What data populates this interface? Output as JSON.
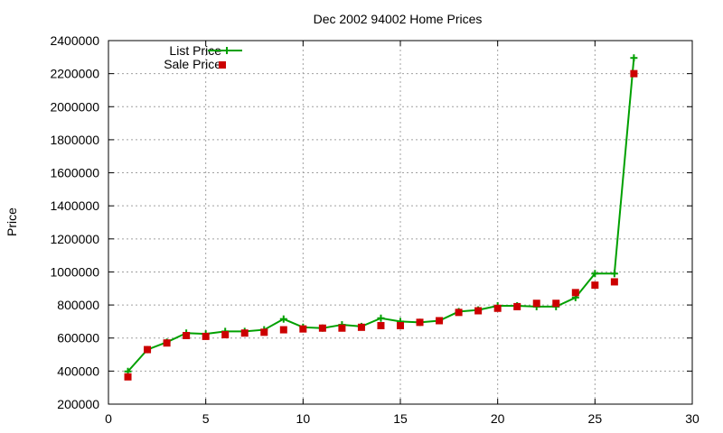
{
  "chart_data": {
    "type": "line",
    "title": "Dec 2002 94002 Home Prices",
    "xlabel": "",
    "ylabel": "Price",
    "xlim": [
      0,
      30
    ],
    "ylim": [
      200000,
      2400000
    ],
    "x_ticks": [
      0,
      5,
      10,
      15,
      20,
      25,
      30
    ],
    "y_ticks": [
      200000,
      400000,
      600000,
      800000,
      1000000,
      1200000,
      1400000,
      1600000,
      1800000,
      2000000,
      2200000,
      2400000
    ],
    "x_tick_labels": [
      "0",
      "5",
      "10",
      "15",
      "20",
      "25",
      "30"
    ],
    "y_tick_labels": [
      "200000",
      "400000",
      "600000",
      "800000",
      "1000000",
      "1200000",
      "1400000",
      "1600000",
      "1800000",
      "2000000",
      "2200000",
      "2400000"
    ],
    "grid": true,
    "legend_position": "top-left",
    "series": [
      {
        "name": "List Price",
        "style": "line-with-plus-markers",
        "color": "#00a000",
        "x": [
          1,
          2,
          3,
          4,
          5,
          6,
          7,
          8,
          9,
          10,
          11,
          12,
          13,
          14,
          15,
          16,
          17,
          18,
          19,
          20,
          21,
          22,
          23,
          24,
          25,
          26,
          27
        ],
        "values": [
          398000,
          530000,
          575000,
          630000,
          625000,
          640000,
          640000,
          650000,
          715000,
          665000,
          660000,
          680000,
          670000,
          720000,
          700000,
          695000,
          705000,
          760000,
          770000,
          795000,
          795000,
          790000,
          790000,
          845000,
          990000,
          990000,
          2295000
        ]
      },
      {
        "name": "Sale Price",
        "style": "square-markers",
        "color": "#cc0000",
        "x": [
          1,
          2,
          3,
          4,
          5,
          6,
          7,
          8,
          9,
          10,
          11,
          12,
          13,
          14,
          15,
          16,
          17,
          18,
          19,
          20,
          21,
          22,
          23,
          24,
          25,
          26,
          27
        ],
        "values": [
          365000,
          530000,
          570000,
          615000,
          610000,
          620000,
          630000,
          635000,
          650000,
          655000,
          660000,
          660000,
          665000,
          675000,
          675000,
          695000,
          705000,
          755000,
          765000,
          780000,
          790000,
          810000,
          810000,
          875000,
          920000,
          940000,
          2200000
        ]
      }
    ]
  }
}
